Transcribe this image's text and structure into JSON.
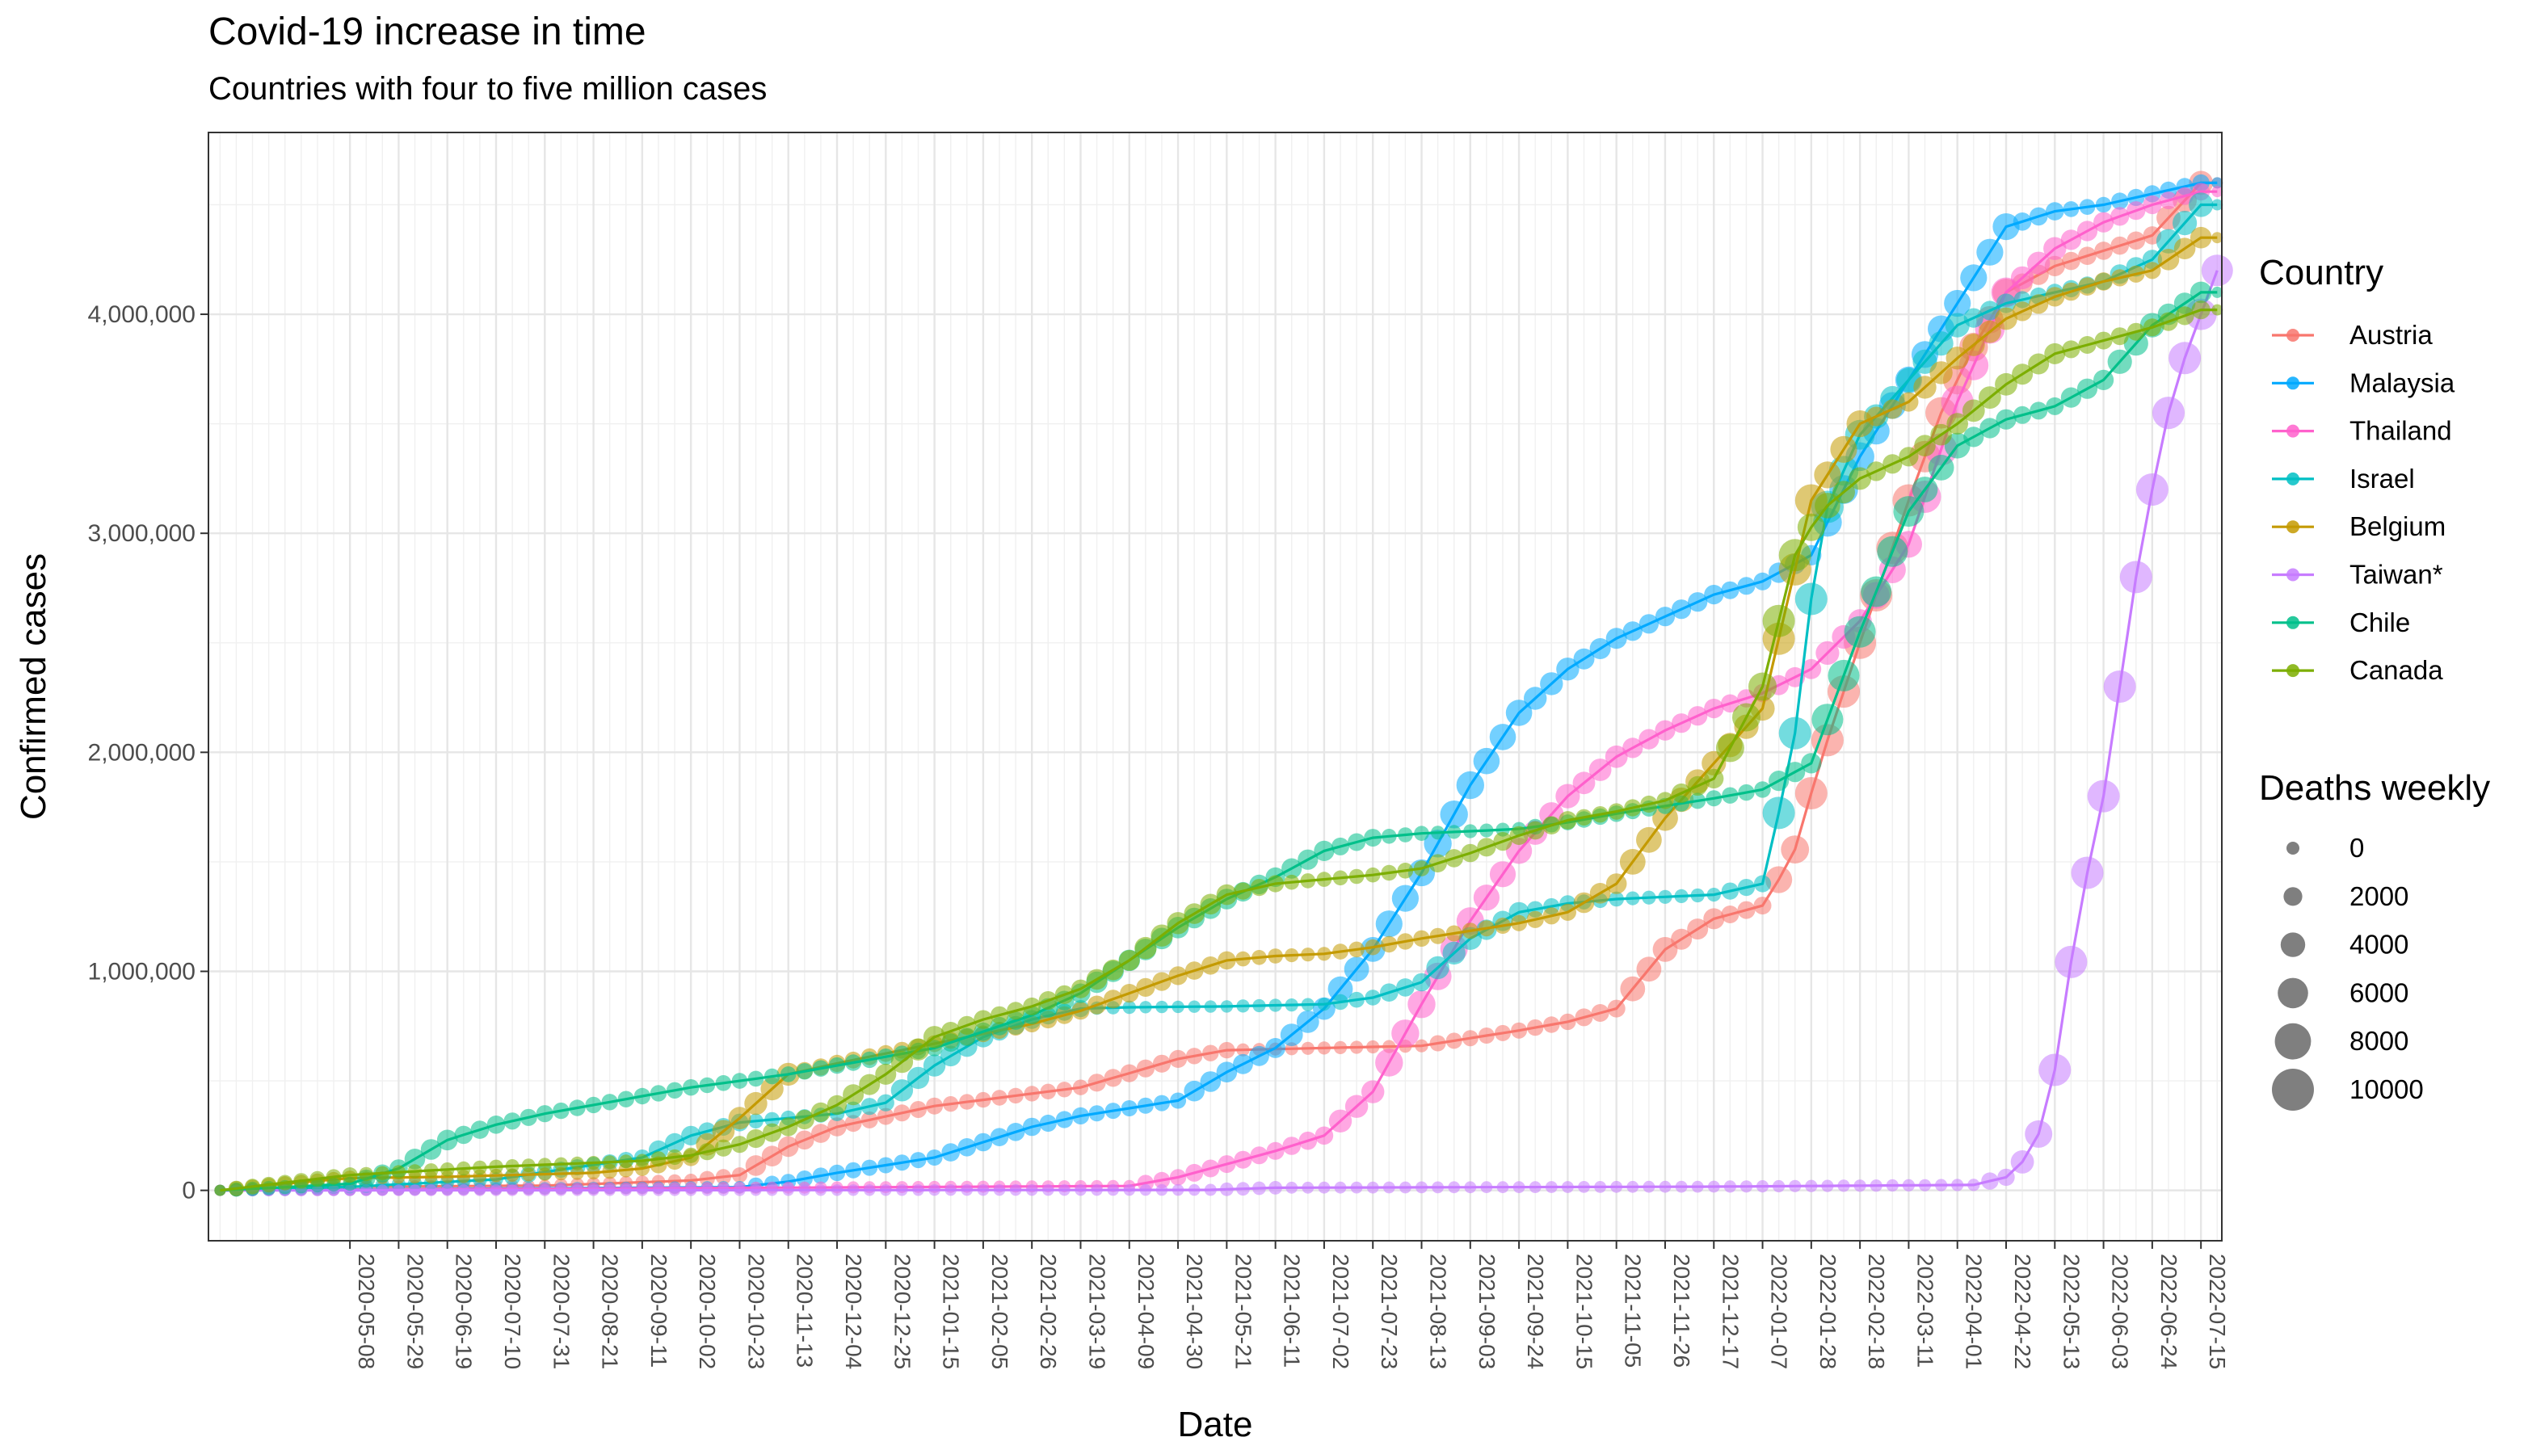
{
  "chart_data": {
    "type": "line",
    "title": "Covid-19 increase in time",
    "subtitle": "Countries with four to five million cases",
    "xlabel": "Date",
    "ylabel": "Confirmed cases",
    "x_start": "2020-03-13",
    "x_end": "2022-07-22",
    "xlim": [
      "2020-03-08",
      "2022-07-24"
    ],
    "ylim": [
      -230000,
      4830000
    ],
    "x_ticks": [
      "2020-05-08",
      "2020-05-29",
      "2020-06-19",
      "2020-07-10",
      "2020-07-31",
      "2020-08-21",
      "2020-09-11",
      "2020-10-02",
      "2020-10-23",
      "2020-11-13",
      "2020-12-04",
      "2020-12-25",
      "2021-01-15",
      "2021-02-05",
      "2021-02-26",
      "2021-03-19",
      "2021-04-09",
      "2021-04-30",
      "2021-05-21",
      "2021-06-11",
      "2021-07-02",
      "2021-07-23",
      "2021-08-13",
      "2021-09-03",
      "2021-09-24",
      "2021-10-15",
      "2021-11-05",
      "2021-11-26",
      "2021-12-17",
      "2022-01-07",
      "2022-01-28",
      "2022-02-18",
      "2022-03-11",
      "2022-04-01",
      "2022-04-22",
      "2022-05-13",
      "2022-06-03",
      "2022-06-24",
      "2022-07-15"
    ],
    "y_ticks": [
      0,
      1000000,
      2000000,
      3000000,
      4000000
    ],
    "y_tick_labels": [
      "0",
      "1,000,000",
      "2,000,000",
      "3,000,000",
      "4,000,000"
    ],
    "grid": true,
    "legend": {
      "placement": "right",
      "color_title": "Country",
      "size_title": "Deaths weekly",
      "size_labels": [
        "0",
        "2000",
        "4000",
        "6000",
        "8000",
        "10000"
      ],
      "size_values": [
        0,
        2000,
        4000,
        6000,
        8000,
        10000
      ]
    },
    "series": [
      {
        "name": "Austria",
        "color": "#F8766D",
        "points": [
          [
            "2020-03-13",
            0
          ],
          [
            "2020-05-01",
            16000
          ],
          [
            "2020-08-01",
            22000
          ],
          [
            "2020-10-02",
            45000
          ],
          [
            "2020-10-23",
            70000
          ],
          [
            "2020-11-13",
            200000
          ],
          [
            "2020-12-04",
            290000
          ],
          [
            "2021-01-15",
            385000
          ],
          [
            "2021-03-19",
            470000
          ],
          [
            "2021-04-30",
            600000
          ],
          [
            "2021-05-21",
            640000
          ],
          [
            "2021-07-02",
            650000
          ],
          [
            "2021-08-13",
            660000
          ],
          [
            "2021-09-24",
            730000
          ],
          [
            "2021-10-15",
            770000
          ],
          [
            "2021-11-05",
            830000
          ],
          [
            "2021-11-26",
            1100000
          ],
          [
            "2021-12-17",
            1240000
          ],
          [
            "2022-01-07",
            1300000
          ],
          [
            "2022-01-20",
            1520000
          ],
          [
            "2022-02-01",
            1960000
          ],
          [
            "2022-02-18",
            2500000
          ],
          [
            "2022-03-11",
            3150000
          ],
          [
            "2022-03-25",
            3550000
          ],
          [
            "2022-04-08",
            3850000
          ],
          [
            "2022-04-22",
            4100000
          ],
          [
            "2022-05-13",
            4220000
          ],
          [
            "2022-06-03",
            4290000
          ],
          [
            "2022-06-24",
            4360000
          ],
          [
            "2022-07-15",
            4600000
          ]
        ]
      },
      {
        "name": "Malaysia",
        "color": "#00A9FF",
        "points": [
          [
            "2020-03-13",
            0
          ],
          [
            "2020-10-23",
            15000
          ],
          [
            "2020-11-13",
            40000
          ],
          [
            "2020-12-04",
            80000
          ],
          [
            "2021-01-15",
            150000
          ],
          [
            "2021-02-26",
            290000
          ],
          [
            "2021-03-19",
            340000
          ],
          [
            "2021-04-30",
            410000
          ],
          [
            "2021-05-21",
            540000
          ],
          [
            "2021-06-11",
            650000
          ],
          [
            "2021-07-02",
            830000
          ],
          [
            "2021-07-23",
            1100000
          ],
          [
            "2021-08-13",
            1450000
          ],
          [
            "2021-09-03",
            1850000
          ],
          [
            "2021-09-24",
            2180000
          ],
          [
            "2021-10-15",
            2380000
          ],
          [
            "2021-11-05",
            2520000
          ],
          [
            "2021-11-26",
            2620000
          ],
          [
            "2021-12-17",
            2720000
          ],
          [
            "2022-01-07",
            2780000
          ],
          [
            "2022-01-28",
            2900000
          ],
          [
            "2022-02-18",
            3350000
          ],
          [
            "2022-03-11",
            3700000
          ],
          [
            "2022-04-01",
            4050000
          ],
          [
            "2022-04-22",
            4400000
          ],
          [
            "2022-05-13",
            4470000
          ],
          [
            "2022-06-03",
            4500000
          ],
          [
            "2022-06-24",
            4550000
          ],
          [
            "2022-07-15",
            4600000
          ]
        ]
      },
      {
        "name": "Thailand",
        "color": "#FF61CC",
        "points": [
          [
            "2020-03-13",
            0
          ],
          [
            "2021-04-09",
            20000
          ],
          [
            "2021-04-30",
            60000
          ],
          [
            "2021-05-21",
            120000
          ],
          [
            "2021-06-11",
            180000
          ],
          [
            "2021-07-02",
            250000
          ],
          [
            "2021-07-23",
            450000
          ],
          [
            "2021-08-13",
            850000
          ],
          [
            "2021-09-03",
            1230000
          ],
          [
            "2021-09-24",
            1550000
          ],
          [
            "2021-10-15",
            1800000
          ],
          [
            "2021-11-05",
            1980000
          ],
          [
            "2021-11-26",
            2100000
          ],
          [
            "2021-12-17",
            2200000
          ],
          [
            "2022-01-07",
            2270000
          ],
          [
            "2022-01-28",
            2380000
          ],
          [
            "2022-02-18",
            2600000
          ],
          [
            "2022-03-11",
            2950000
          ],
          [
            "2022-04-01",
            3600000
          ],
          [
            "2022-04-22",
            4100000
          ],
          [
            "2022-05-13",
            4300000
          ],
          [
            "2022-06-03",
            4420000
          ],
          [
            "2022-06-24",
            4500000
          ],
          [
            "2022-07-15",
            4560000
          ]
        ]
      },
      {
        "name": "Israel",
        "color": "#00BFC4",
        "points": [
          [
            "2020-03-13",
            0
          ],
          [
            "2020-05-08",
            16000
          ],
          [
            "2020-07-10",
            50000
          ],
          [
            "2020-09-11",
            150000
          ],
          [
            "2020-10-02",
            250000
          ],
          [
            "2020-10-23",
            310000
          ],
          [
            "2020-11-13",
            330000
          ],
          [
            "2020-12-04",
            350000
          ],
          [
            "2020-12-25",
            400000
          ],
          [
            "2021-01-15",
            570000
          ],
          [
            "2021-02-05",
            700000
          ],
          [
            "2021-02-26",
            780000
          ],
          [
            "2021-03-19",
            830000
          ],
          [
            "2021-04-09",
            836000
          ],
          [
            "2021-05-21",
            840000
          ],
          [
            "2021-07-02",
            850000
          ],
          [
            "2021-07-23",
            880000
          ],
          [
            "2021-08-13",
            950000
          ],
          [
            "2021-09-03",
            1150000
          ],
          [
            "2021-09-24",
            1270000
          ],
          [
            "2021-10-15",
            1310000
          ],
          [
            "2021-11-05",
            1330000
          ],
          [
            "2021-12-17",
            1350000
          ],
          [
            "2022-01-07",
            1400000
          ],
          [
            "2022-01-20",
            2000000
          ],
          [
            "2022-02-01",
            3050000
          ],
          [
            "2022-02-18",
            3450000
          ],
          [
            "2022-03-11",
            3700000
          ],
          [
            "2022-04-01",
            3950000
          ],
          [
            "2022-04-22",
            4050000
          ],
          [
            "2022-05-13",
            4100000
          ],
          [
            "2022-06-03",
            4150000
          ],
          [
            "2022-06-24",
            4250000
          ],
          [
            "2022-07-15",
            4500000
          ]
        ]
      },
      {
        "name": "Belgium",
        "color": "#C49A00",
        "points": [
          [
            "2020-03-13",
            0
          ],
          [
            "2020-04-10",
            30000
          ],
          [
            "2020-05-08",
            56000
          ],
          [
            "2020-06-19",
            62000
          ],
          [
            "2020-08-21",
            80000
          ],
          [
            "2020-09-11",
            100000
          ],
          [
            "2020-10-02",
            150000
          ],
          [
            "2020-10-23",
            330000
          ],
          [
            "2020-11-13",
            530000
          ],
          [
            "2020-12-04",
            580000
          ],
          [
            "2021-01-15",
            670000
          ],
          [
            "2021-02-26",
            760000
          ],
          [
            "2021-03-19",
            820000
          ],
          [
            "2021-04-09",
            900000
          ],
          [
            "2021-04-30",
            980000
          ],
          [
            "2021-05-21",
            1050000
          ],
          [
            "2021-06-11",
            1070000
          ],
          [
            "2021-07-02",
            1080000
          ],
          [
            "2021-07-23",
            1110000
          ],
          [
            "2021-08-13",
            1150000
          ],
          [
            "2021-09-24",
            1220000
          ],
          [
            "2021-10-15",
            1270000
          ],
          [
            "2021-11-05",
            1400000
          ],
          [
            "2021-11-26",
            1700000
          ],
          [
            "2021-12-17",
            1950000
          ],
          [
            "2022-01-07",
            2200000
          ],
          [
            "2022-01-18",
            2700000
          ],
          [
            "2022-01-28",
            3150000
          ],
          [
            "2022-02-18",
            3500000
          ],
          [
            "2022-03-11",
            3600000
          ],
          [
            "2022-04-01",
            3800000
          ],
          [
            "2022-04-22",
            3980000
          ],
          [
            "2022-05-13",
            4080000
          ],
          [
            "2022-06-03",
            4150000
          ],
          [
            "2022-06-24",
            4200000
          ],
          [
            "2022-07-15",
            4350000
          ]
        ]
      },
      {
        "name": "Taiwan*",
        "color": "#C77CFF",
        "points": [
          [
            "2020-03-13",
            0
          ],
          [
            "2021-05-13",
            2000
          ],
          [
            "2021-06-11",
            12000
          ],
          [
            "2021-12-17",
            17000
          ],
          [
            "2022-04-08",
            25000
          ],
          [
            "2022-04-22",
            60000
          ],
          [
            "2022-05-01",
            150000
          ],
          [
            "2022-05-08",
            300000
          ],
          [
            "2022-05-15",
            650000
          ],
          [
            "2022-05-22",
            1200000
          ],
          [
            "2022-06-03",
            1800000
          ],
          [
            "2022-06-10",
            2300000
          ],
          [
            "2022-06-17",
            2800000
          ],
          [
            "2022-06-24",
            3200000
          ],
          [
            "2022-07-01",
            3550000
          ],
          [
            "2022-07-08",
            3800000
          ],
          [
            "2022-07-15",
            4000000
          ],
          [
            "2022-07-22",
            4200000
          ]
        ]
      },
      {
        "name": "Chile",
        "color": "#00C08B",
        "points": [
          [
            "2020-03-13",
            0
          ],
          [
            "2020-05-08",
            30000
          ],
          [
            "2020-05-29",
            100000
          ],
          [
            "2020-06-19",
            230000
          ],
          [
            "2020-07-10",
            300000
          ],
          [
            "2020-07-31",
            350000
          ],
          [
            "2020-08-21",
            390000
          ],
          [
            "2020-09-11",
            430000
          ],
          [
            "2020-10-02",
            470000
          ],
          [
            "2020-10-23",
            500000
          ],
          [
            "2020-11-13",
            530000
          ],
          [
            "2020-12-04",
            570000
          ],
          [
            "2021-01-15",
            650000
          ],
          [
            "2021-02-26",
            800000
          ],
          [
            "2021-03-19",
            900000
          ],
          [
            "2021-04-09",
            1050000
          ],
          [
            "2021-04-30",
            1200000
          ],
          [
            "2021-05-21",
            1330000
          ],
          [
            "2021-06-11",
            1430000
          ],
          [
            "2021-07-02",
            1550000
          ],
          [
            "2021-07-23",
            1610000
          ],
          [
            "2021-08-13",
            1630000
          ],
          [
            "2021-09-24",
            1650000
          ],
          [
            "2021-10-15",
            1680000
          ],
          [
            "2021-11-05",
            1720000
          ],
          [
            "2021-12-17",
            1790000
          ],
          [
            "2022-01-07",
            1830000
          ],
          [
            "2022-01-28",
            1950000
          ],
          [
            "2022-02-18",
            2550000
          ],
          [
            "2022-03-11",
            3100000
          ],
          [
            "2022-04-01",
            3400000
          ],
          [
            "2022-04-22",
            3520000
          ],
          [
            "2022-05-13",
            3580000
          ],
          [
            "2022-06-03",
            3700000
          ],
          [
            "2022-06-24",
            3950000
          ],
          [
            "2022-07-15",
            4100000
          ]
        ]
      },
      {
        "name": "Canada",
        "color": "#7CAE00",
        "points": [
          [
            "2020-03-13",
            0
          ],
          [
            "2020-05-08",
            70000
          ],
          [
            "2020-07-10",
            108000
          ],
          [
            "2020-09-11",
            135000
          ],
          [
            "2020-10-02",
            160000
          ],
          [
            "2020-10-23",
            210000
          ],
          [
            "2020-11-13",
            290000
          ],
          [
            "2020-12-04",
            390000
          ],
          [
            "2020-12-25",
            530000
          ],
          [
            "2021-01-15",
            700000
          ],
          [
            "2021-02-05",
            780000
          ],
          [
            "2021-02-26",
            840000
          ],
          [
            "2021-03-19",
            920000
          ],
          [
            "2021-04-09",
            1050000
          ],
          [
            "2021-04-30",
            1220000
          ],
          [
            "2021-05-21",
            1350000
          ],
          [
            "2021-06-11",
            1400000
          ],
          [
            "2021-07-02",
            1420000
          ],
          [
            "2021-07-23",
            1440000
          ],
          [
            "2021-08-13",
            1470000
          ],
          [
            "2021-09-03",
            1540000
          ],
          [
            "2021-09-24",
            1620000
          ],
          [
            "2021-10-15",
            1690000
          ],
          [
            "2021-11-05",
            1730000
          ],
          [
            "2021-11-26",
            1780000
          ],
          [
            "2021-12-17",
            1880000
          ],
          [
            "2022-01-07",
            2300000
          ],
          [
            "2022-01-21",
            2900000
          ],
          [
            "2022-02-01",
            3100000
          ],
          [
            "2022-02-18",
            3250000
          ],
          [
            "2022-03-11",
            3350000
          ],
          [
            "2022-04-01",
            3500000
          ],
          [
            "2022-04-22",
            3680000
          ],
          [
            "2022-05-13",
            3820000
          ],
          [
            "2022-06-03",
            3880000
          ],
          [
            "2022-06-24",
            3940000
          ],
          [
            "2022-07-15",
            4020000
          ]
        ]
      }
    ]
  }
}
